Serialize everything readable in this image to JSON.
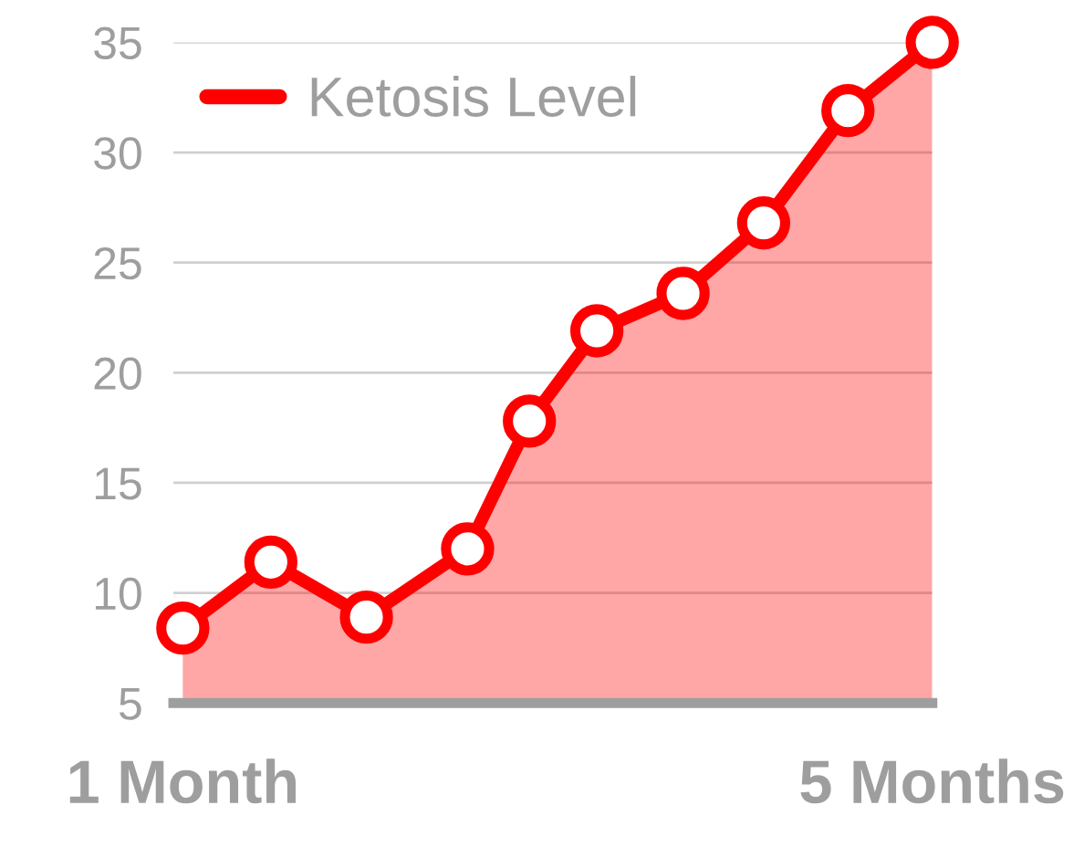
{
  "chart_data": {
    "type": "area",
    "x": [
      1,
      1.47,
      1.98,
      2.52,
      2.85,
      3.21,
      3.67,
      4.1,
      4.55,
      5
    ],
    "series": [
      {
        "name": "Ketosis Level",
        "color": "#ff0000",
        "values": [
          8.4,
          11.4,
          8.9,
          12.0,
          17.8,
          21.9,
          23.6,
          26.8,
          31.9,
          35
        ]
      }
    ],
    "xlim": [
      0.95,
      5
    ],
    "xticks": [
      {
        "value": 1,
        "label": "1 Month"
      },
      {
        "value": 5,
        "label": "5 Months"
      }
    ],
    "ylim": [
      5,
      35
    ],
    "yticks": [
      5,
      10,
      15,
      20,
      25,
      30,
      35
    ],
    "grid": "y",
    "legend": "top left",
    "marker": "circle"
  }
}
